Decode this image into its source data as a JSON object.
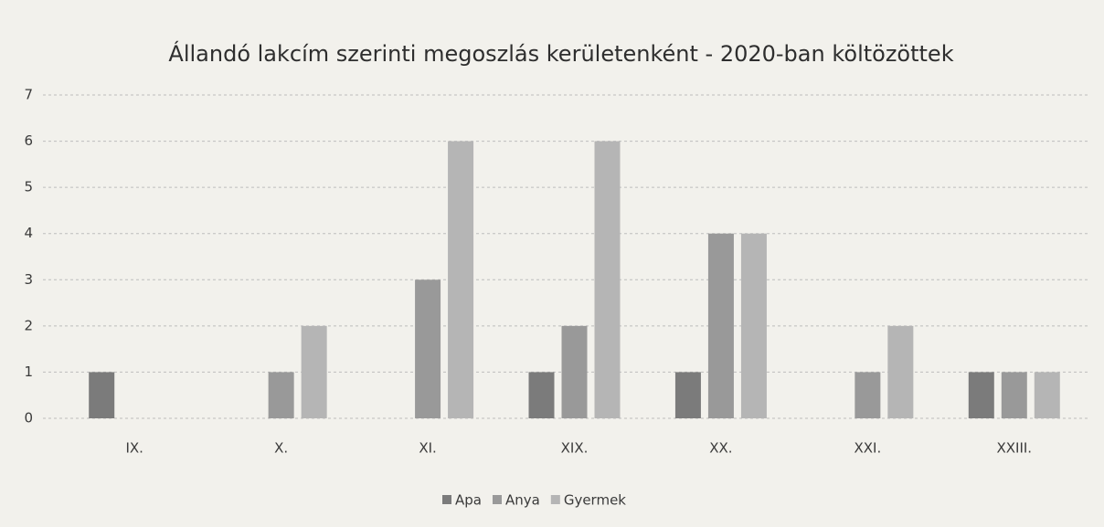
{
  "chart_data": {
    "type": "bar",
    "title": "Állandó lakcím szerinti megoszlás kerületenként - 2020-ban költözöttek",
    "categories": [
      "IX.",
      "X.",
      "XI.",
      "XIX.",
      "XX.",
      "XXI.",
      "XXIII."
    ],
    "series": [
      {
        "name": "Apa",
        "color": "#7b7b7b",
        "values": [
          1,
          0,
          0,
          1,
          1,
          0,
          1
        ]
      },
      {
        "name": "Anya",
        "color": "#999999",
        "values": [
          0,
          1,
          3,
          2,
          4,
          1,
          1
        ]
      },
      {
        "name": "Gyermek",
        "color": "#b5b5b5",
        "values": [
          0,
          2,
          6,
          6,
          4,
          2,
          1
        ]
      }
    ],
    "ylim": [
      0,
      7
    ],
    "yticks": [
      0,
      1,
      2,
      3,
      4,
      5,
      6,
      7
    ],
    "grid": true,
    "legend": "bottom"
  }
}
